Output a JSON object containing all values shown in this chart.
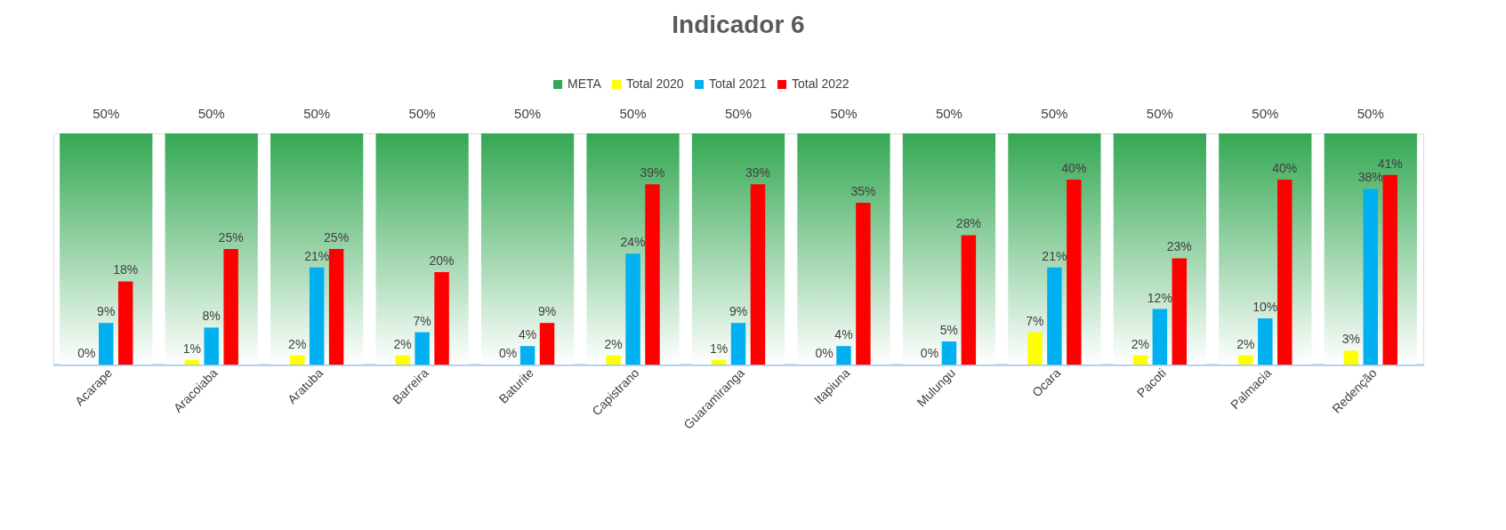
{
  "chart_data": {
    "type": "bar",
    "title": "Indicador 6",
    "categories": [
      "Acarape",
      "Aracoiaba",
      "Aratuba",
      "Barreira",
      "Baturite",
      "Capistrano",
      "Guaramiranga",
      "Itapiuna",
      "Mulungu",
      "Ocara",
      "Pacoti",
      "Palmacia",
      "Redenção"
    ],
    "series": [
      {
        "name": "META",
        "color": "#34a853",
        "values": [
          50,
          50,
          50,
          50,
          50,
          50,
          50,
          50,
          50,
          50,
          50,
          50,
          50
        ],
        "value_labels": [
          "50%",
          "50%",
          "50%",
          "50%",
          "50%",
          "50%",
          "50%",
          "50%",
          "50%",
          "50%",
          "50%",
          "50%",
          "50%"
        ]
      },
      {
        "name": "Total 2020",
        "color": "#ffff00",
        "values": [
          0,
          1,
          2,
          2,
          0,
          2,
          1,
          0,
          0,
          7,
          2,
          2,
          3
        ],
        "value_labels": [
          "0%",
          "1%",
          "2%",
          "2%",
          "0%",
          "2%",
          "1%",
          "0%",
          "0%",
          "7%",
          "2%",
          "2%",
          "3%"
        ]
      },
      {
        "name": "Total 2021",
        "color": "#00b0f0",
        "values": [
          9,
          8,
          21,
          7,
          4,
          24,
          9,
          4,
          5,
          21,
          12,
          10,
          38
        ],
        "value_labels": [
          "9%",
          "8%",
          "21%",
          "7%",
          "4%",
          "24%",
          "9%",
          "4%",
          "5%",
          "21%",
          "12%",
          "10%",
          "38%"
        ]
      },
      {
        "name": "Total 2022",
        "color": "#ff0000",
        "values": [
          18,
          25,
          25,
          20,
          9,
          39,
          39,
          35,
          28,
          40,
          23,
          40,
          41
        ],
        "value_labels": [
          "18%",
          "25%",
          "25%",
          "20%",
          "9%",
          "39%",
          "39%",
          "35%",
          "28%",
          "40%",
          "23%",
          "40%",
          "41%"
        ]
      }
    ],
    "ylim": [
      0,
      50
    ],
    "tick_labels": "x",
    "legend": "top"
  }
}
